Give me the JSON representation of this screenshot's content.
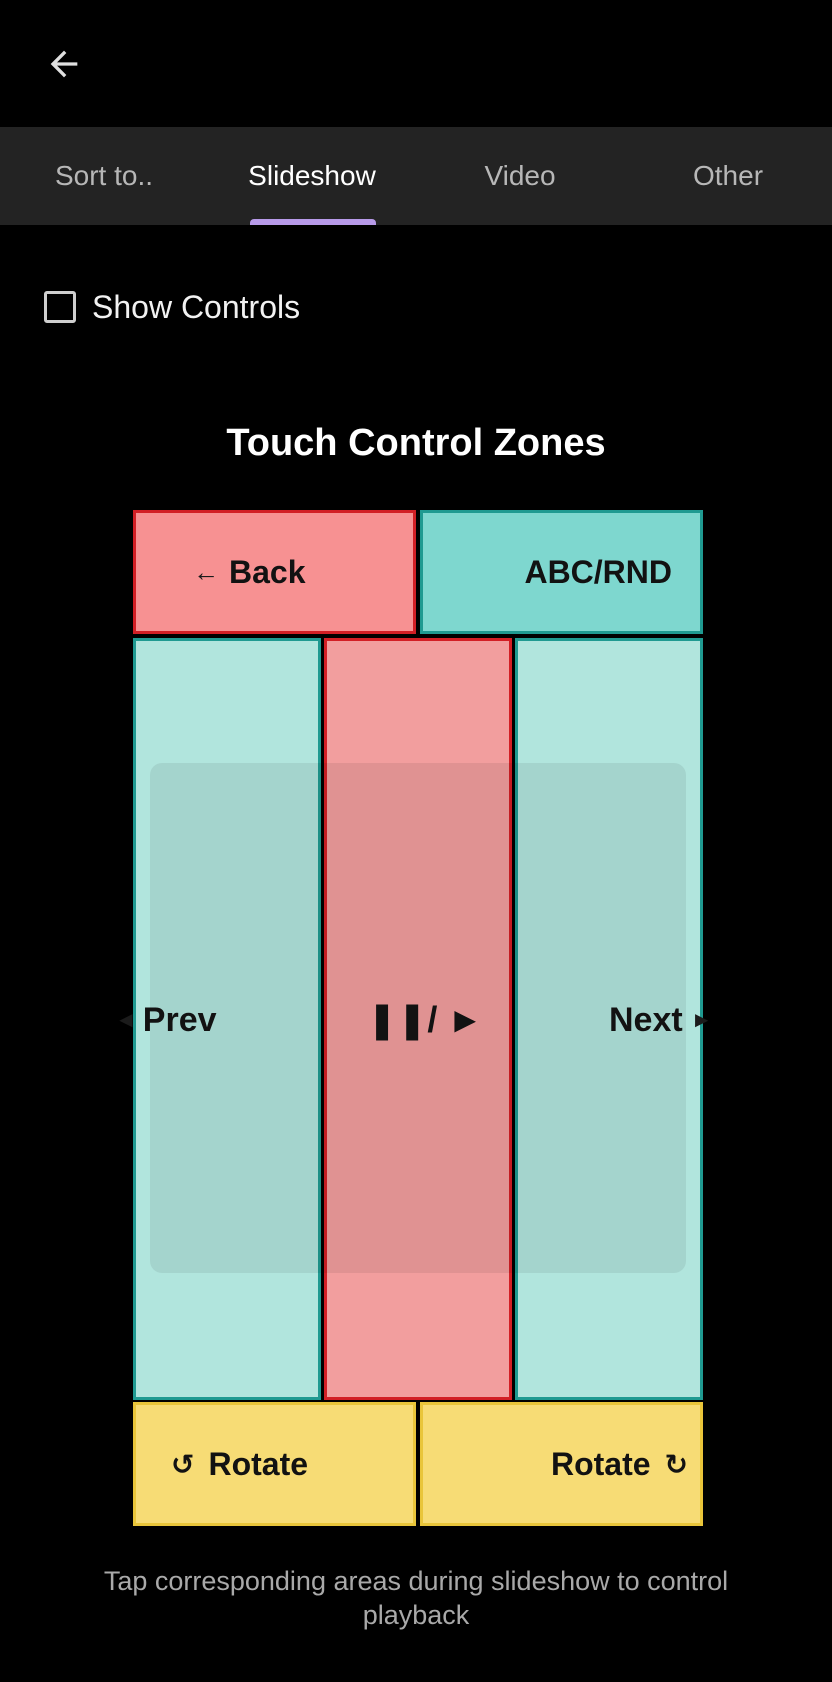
{
  "appbar": {
    "back_icon": "arrow-left-icon"
  },
  "tabs": [
    {
      "label": "Sort to..",
      "active": false
    },
    {
      "label": "Slideshow",
      "active": true
    },
    {
      "label": "Video",
      "active": false
    },
    {
      "label": "Other",
      "active": false
    }
  ],
  "show_controls": {
    "label": "Show Controls",
    "checked": false
  },
  "zones_title": "Touch Control Zones",
  "zones": {
    "back": {
      "arrow": "←",
      "label": "Back"
    },
    "abc": {
      "label": "ABC/RND"
    },
    "prev": {
      "arrow": "◄",
      "label": "Prev"
    },
    "play": {
      "label": "❚❚/ ►"
    },
    "next": {
      "label": "Next",
      "arrow": "►"
    },
    "rotate_left": {
      "icon": "↺",
      "label": "Rotate"
    },
    "rotate_right": {
      "label": "Rotate",
      "icon": "↻"
    }
  },
  "footer_note": "Tap corresponding areas during slideshow to control playback",
  "colors": {
    "tab_indicator": "#b79ae8",
    "red_zone": "#f79192",
    "teal_zone": "#7ed7cf",
    "mint_zone": "#b1e5dd",
    "yellow_zone": "#f7dc75"
  }
}
